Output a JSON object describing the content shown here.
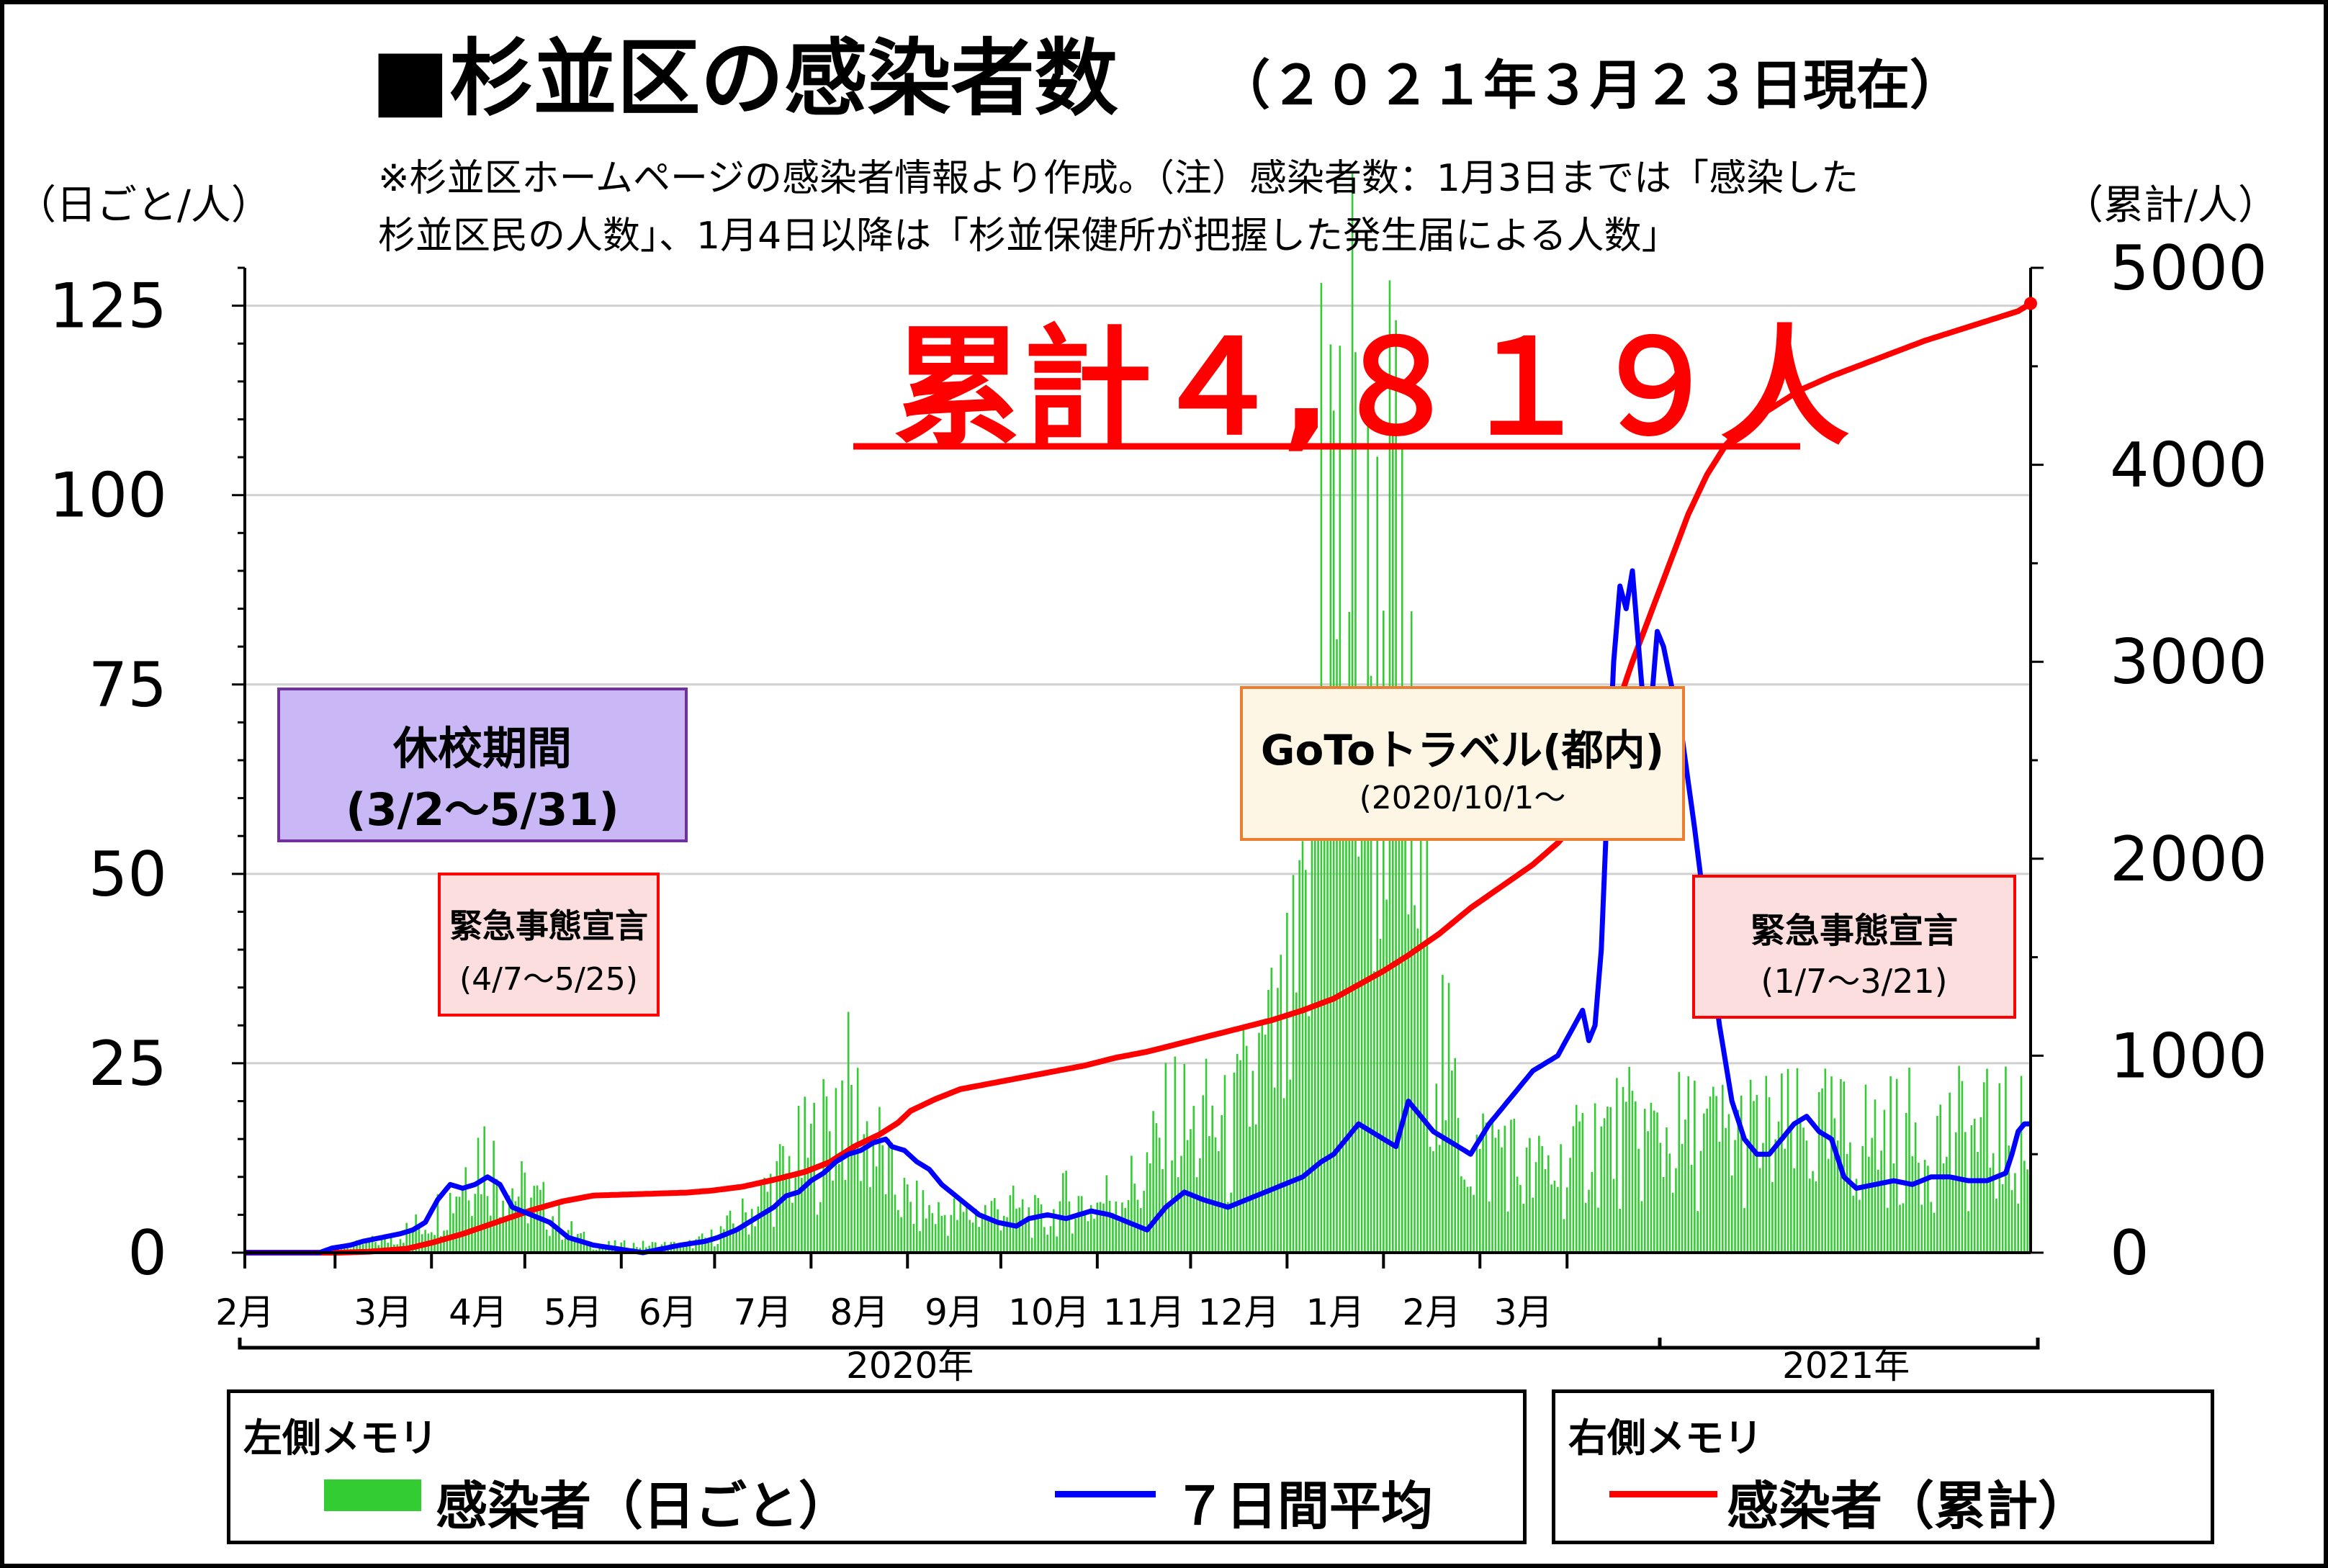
{
  "header": {
    "title": "■杉並区の感染者数",
    "date": "（２０２１年３月２３日現在）",
    "note_line1": "※杉並区ホームページの感染者情報より作成。（注）感染者数：1月3日までは「感染した",
    "note_line2": "杉並区民の人数」、1月4日以降は「杉並保健所が把握した発生届による人数」"
  },
  "axes": {
    "left_unit": "（日ごと/人）",
    "right_unit": "（累計/人）",
    "year_2020": "2020年",
    "year_2021": "2021年"
  },
  "total_label": "累計４,８１９人",
  "annotations": {
    "school_closure": {
      "title": "休校期間",
      "range": "(3/2～5/31)"
    },
    "emergency1": {
      "title": "緊急事態宣言",
      "range": "(4/7～5/25)"
    },
    "goto": {
      "title": "GoToトラベル(都内)",
      "range": "(2020/10/1～"
    },
    "emergency2": {
      "title": "緊急事態宣言",
      "range": "(1/7～3/21)"
    }
  },
  "legend": {
    "left_title": "左側メモリ",
    "daily_label": "感染者（日ごと）",
    "avg_label": "７日間平均",
    "right_title": "右側メモリ",
    "cumulative_label": "感染者（累計）"
  },
  "colors": {
    "daily_bar": "#33cc33",
    "avg_line": "#0000ff",
    "cumulative_line": "#ff0000",
    "school_box": "#c9b8f5",
    "emergency_box": "#fcdede",
    "goto_box": "#fdf6e4"
  },
  "chart_data": {
    "type": "bar+line",
    "x_tick_labels": [
      "2月",
      "3月",
      "4月",
      "5月",
      "6月",
      "7月",
      "8月",
      "9月",
      "10月",
      "11月",
      "12月",
      "1月",
      "2月",
      "3月"
    ],
    "yleft": {
      "ylim": [
        0,
        130
      ],
      "ticks": [
        0,
        25,
        50,
        75,
        100,
        125
      ]
    },
    "yright": {
      "ylim": [
        0,
        5000
      ],
      "ticks": [
        0,
        1000,
        2000,
        3000,
        4000,
        5000
      ]
    },
    "daily_anchors": [
      [
        0,
        0
      ],
      [
        20,
        0
      ],
      [
        36,
        1
      ],
      [
        48,
        2
      ],
      [
        58,
        4
      ],
      [
        66,
        7
      ],
      [
        72,
        12
      ],
      [
        76,
        14
      ],
      [
        82,
        10
      ],
      [
        88,
        8
      ],
      [
        96,
        6
      ],
      [
        104,
        3
      ],
      [
        112,
        1
      ],
      [
        122,
        1
      ],
      [
        132,
        1
      ],
      [
        142,
        1
      ],
      [
        150,
        2
      ],
      [
        158,
        4
      ],
      [
        164,
        6
      ],
      [
        170,
        9
      ],
      [
        178,
        12
      ],
      [
        186,
        15
      ],
      [
        192,
        21
      ],
      [
        198,
        17
      ],
      [
        204,
        13
      ],
      [
        208,
        9
      ],
      [
        214,
        6
      ],
      [
        224,
        5
      ],
      [
        234,
        5
      ],
      [
        244,
        6
      ],
      [
        252,
        5
      ],
      [
        258,
        4
      ],
      [
        264,
        7
      ],
      [
        272,
        6
      ],
      [
        280,
        8
      ],
      [
        288,
        9
      ],
      [
        294,
        14
      ],
      [
        300,
        18
      ],
      [
        304,
        15
      ],
      [
        312,
        17
      ],
      [
        316,
        14
      ],
      [
        322,
        20
      ],
      [
        328,
        24
      ],
      [
        334,
        27
      ],
      [
        338,
        32
      ],
      [
        342,
        42
      ],
      [
        344,
        60
      ],
      [
        346,
        84
      ],
      [
        348,
        110
      ],
      [
        350,
        90
      ],
      [
        353,
        86
      ],
      [
        356,
        95
      ],
      [
        360,
        77
      ],
      [
        364,
        76
      ],
      [
        367,
        88
      ],
      [
        371,
        75
      ],
      [
        375,
        55
      ],
      [
        379,
        42
      ],
      [
        384,
        28
      ],
      [
        389,
        18
      ],
      [
        394,
        13
      ],
      [
        400,
        13
      ],
      [
        405,
        15
      ],
      [
        409,
        11
      ],
      [
        414,
        10
      ],
      [
        420,
        11
      ],
      [
        426,
        11
      ],
      [
        430,
        13
      ],
      [
        432,
        17
      ],
      [
        434,
        15
      ]
    ],
    "daily_peak": {
      "day": 346,
      "value": 128
    },
    "avg_anchors": [
      [
        0,
        0
      ],
      [
        18,
        0
      ],
      [
        24,
        0
      ],
      [
        28,
        0.6
      ],
      [
        34,
        1
      ],
      [
        38,
        1.5
      ],
      [
        44,
        2
      ],
      [
        50,
        2.5
      ],
      [
        54,
        3
      ],
      [
        58,
        4
      ],
      [
        62,
        7
      ],
      [
        66,
        9
      ],
      [
        70,
        8.5
      ],
      [
        74,
        9
      ],
      [
        78,
        10
      ],
      [
        82,
        9
      ],
      [
        86,
        6
      ],
      [
        92,
        5
      ],
      [
        98,
        4
      ],
      [
        104,
        2
      ],
      [
        112,
        1
      ],
      [
        120,
        0.5
      ],
      [
        128,
        0
      ],
      [
        134,
        0.5
      ],
      [
        140,
        1
      ],
      [
        148,
        1.5
      ],
      [
        152,
        2
      ],
      [
        158,
        3
      ],
      [
        162,
        4
      ],
      [
        166,
        5
      ],
      [
        170,
        6
      ],
      [
        174,
        7.5
      ],
      [
        178,
        8
      ],
      [
        182,
        9.5
      ],
      [
        186,
        10.5
      ],
      [
        190,
        12
      ],
      [
        194,
        13
      ],
      [
        198,
        13.5
      ],
      [
        202,
        14.5
      ],
      [
        206,
        15
      ],
      [
        208,
        14
      ],
      [
        212,
        13.5
      ],
      [
        216,
        12
      ],
      [
        220,
        11
      ],
      [
        224,
        9
      ],
      [
        230,
        7
      ],
      [
        236,
        5
      ],
      [
        242,
        4
      ],
      [
        248,
        3.5
      ],
      [
        252,
        4.5
      ],
      [
        258,
        5
      ],
      [
        264,
        4.5
      ],
      [
        272,
        5.5
      ],
      [
        278,
        5
      ],
      [
        284,
        4
      ],
      [
        290,
        3
      ],
      [
        296,
        6
      ],
      [
        302,
        8
      ],
      [
        308,
        7
      ],
      [
        316,
        6
      ],
      [
        322,
        7
      ],
      [
        328,
        8
      ],
      [
        334,
        9
      ],
      [
        340,
        10
      ],
      [
        346,
        12
      ],
      [
        350,
        13
      ],
      [
        354,
        15
      ],
      [
        358,
        17
      ],
      [
        362,
        16
      ],
      [
        366,
        15
      ],
      [
        370,
        14
      ],
      [
        374,
        20
      ],
      [
        378,
        18
      ],
      [
        382,
        16
      ],
      [
        386,
        15
      ],
      [
        390,
        14
      ],
      [
        394,
        13
      ],
      [
        400,
        17
      ],
      [
        406,
        20
      ],
      [
        410,
        22
      ],
      [
        414,
        24
      ],
      [
        418,
        25
      ],
      [
        422,
        26
      ],
      [
        426,
        29
      ],
      [
        430,
        32
      ],
      [
        432,
        28
      ],
      [
        434,
        30
      ],
      [
        436,
        40
      ],
      [
        438,
        60
      ],
      [
        440,
        78
      ],
      [
        442,
        88
      ],
      [
        444,
        85
      ],
      [
        446,
        90
      ],
      [
        448,
        80
      ],
      [
        450,
        70
      ],
      [
        452,
        72
      ],
      [
        454,
        82
      ],
      [
        456,
        80
      ],
      [
        458,
        76
      ],
      [
        462,
        68
      ],
      [
        466,
        56
      ],
      [
        470,
        43
      ],
      [
        474,
        30
      ],
      [
        478,
        20
      ],
      [
        482,
        15
      ],
      [
        486,
        13
      ],
      [
        490,
        13
      ],
      [
        494,
        15
      ],
      [
        498,
        17
      ],
      [
        502,
        18
      ],
      [
        506,
        16
      ],
      [
        510,
        15
      ],
      [
        514,
        10
      ],
      [
        518,
        8.5
      ],
      [
        524,
        9
      ],
      [
        530,
        9.5
      ],
      [
        536,
        9
      ],
      [
        542,
        10
      ],
      [
        548,
        10
      ],
      [
        554,
        9.5
      ],
      [
        560,
        9.5
      ],
      [
        566,
        10.5
      ],
      [
        568,
        13
      ],
      [
        570,
        16
      ],
      [
        572,
        17
      ]
    ],
    "cumulative_anchors": [
      [
        0,
        0
      ],
      [
        30,
        0
      ],
      [
        40,
        5
      ],
      [
        52,
        20
      ],
      [
        60,
        50
      ],
      [
        70,
        95
      ],
      [
        80,
        150
      ],
      [
        92,
        215
      ],
      [
        102,
        260
      ],
      [
        112,
        290
      ],
      [
        122,
        295
      ],
      [
        132,
        300
      ],
      [
        142,
        305
      ],
      [
        150,
        315
      ],
      [
        160,
        335
      ],
      [
        170,
        370
      ],
      [
        180,
        410
      ],
      [
        188,
        460
      ],
      [
        196,
        540
      ],
      [
        204,
        600
      ],
      [
        210,
        660
      ],
      [
        214,
        720
      ],
      [
        222,
        780
      ],
      [
        230,
        830
      ],
      [
        240,
        860
      ],
      [
        250,
        890
      ],
      [
        260,
        920
      ],
      [
        270,
        950
      ],
      [
        280,
        990
      ],
      [
        290,
        1020
      ],
      [
        300,
        1060
      ],
      [
        310,
        1100
      ],
      [
        320,
        1140
      ],
      [
        330,
        1180
      ],
      [
        340,
        1230
      ],
      [
        350,
        1290
      ],
      [
        358,
        1360
      ],
      [
        366,
        1430
      ],
      [
        374,
        1510
      ],
      [
        384,
        1620
      ],
      [
        394,
        1750
      ],
      [
        404,
        1860
      ],
      [
        414,
        1970
      ],
      [
        422,
        2080
      ],
      [
        430,
        2220
      ],
      [
        436,
        2430
      ],
      [
        440,
        2720
      ],
      [
        446,
        3000
      ],
      [
        452,
        3250
      ],
      [
        458,
        3500
      ],
      [
        464,
        3750
      ],
      [
        470,
        3950
      ],
      [
        476,
        4100
      ],
      [
        482,
        4200
      ],
      [
        490,
        4280
      ],
      [
        500,
        4380
      ],
      [
        510,
        4450
      ],
      [
        520,
        4510
      ],
      [
        530,
        4570
      ],
      [
        540,
        4630
      ],
      [
        550,
        4680
      ],
      [
        560,
        4730
      ],
      [
        570,
        4780
      ],
      [
        574,
        4819
      ]
    ]
  }
}
